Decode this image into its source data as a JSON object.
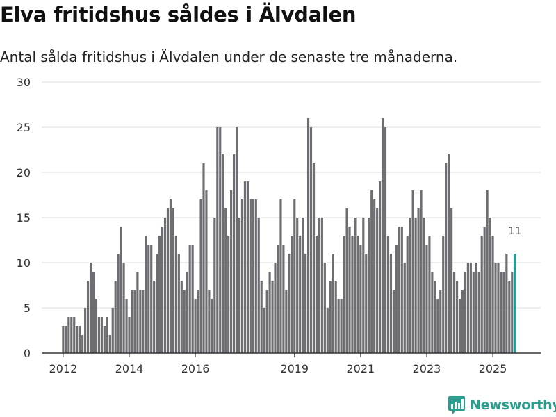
{
  "page": {
    "title": "Elva fritidshus såldes i Älvdalen",
    "subtitle": "Antal sålda fritidshus i Älvdalen under de senaste tre månaderna."
  },
  "brand": {
    "name": "Newsworthy",
    "color": "#2a9d8f"
  },
  "colors": {
    "bar": "#6d6d72",
    "highlight": "#17a2a0",
    "grid": "#dddddd",
    "axis": "#333333",
    "text": "#333333"
  },
  "chart_data": {
    "type": "bar",
    "title": "Elva fritidshus såldes i Älvdalen",
    "subtitle": "Antal sålda fritidshus i Älvdalen under de senaste tre månaderna.",
    "xlabel": "",
    "ylabel": "",
    "ylim": [
      0,
      30
    ],
    "yticks": [
      0,
      5,
      10,
      15,
      20,
      25,
      30
    ],
    "x_range": [
      2011.35,
      2026.45
    ],
    "xticks": [
      {
        "label": "2012",
        "pos": 2012
      },
      {
        "label": "2014",
        "pos": 2014
      },
      {
        "label": "2016",
        "pos": 2016
      },
      {
        "label": "2019",
        "pos": 2019
      },
      {
        "label": "2021",
        "pos": 2021
      },
      {
        "label": "2023",
        "pos": 2023
      },
      {
        "label": "2025",
        "pos": 2025
      }
    ],
    "grid": true,
    "x_start": 2012.0,
    "step_years": 0.0833333,
    "values": [
      3,
      3,
      4,
      4,
      4,
      3,
      3,
      2,
      5,
      8,
      10,
      9,
      6,
      4,
      4,
      3,
      4,
      2,
      5,
      8,
      11,
      14,
      10,
      6,
      4,
      7,
      7,
      9,
      7,
      7,
      13,
      12,
      12,
      8,
      11,
      13,
      14,
      15,
      16,
      17,
      16,
      13,
      11,
      8,
      7,
      9,
      12,
      12,
      6,
      7,
      17,
      21,
      18,
      7,
      6,
      15,
      25,
      25,
      22,
      16,
      13,
      18,
      22,
      25,
      15,
      17,
      19,
      19,
      17,
      17,
      17,
      15,
      8,
      5,
      7,
      9,
      8,
      10,
      12,
      17,
      12,
      7,
      11,
      13,
      17,
      15,
      13,
      15,
      11,
      26,
      25,
      21,
      13,
      15,
      15,
      10,
      5,
      8,
      11,
      8,
      6,
      6,
      13,
      16,
      14,
      13,
      15,
      13,
      12,
      15,
      11,
      15,
      18,
      17,
      16,
      19,
      26,
      25,
      13,
      11,
      7,
      12,
      14,
      14,
      10,
      13,
      15,
      18,
      15,
      16,
      18,
      15,
      12,
      13,
      9,
      8,
      6,
      7,
      13,
      21,
      22,
      16,
      9,
      8,
      6,
      7,
      9,
      10,
      10,
      9,
      10,
      9,
      13,
      14,
      18,
      15,
      13,
      10,
      10,
      9,
      9,
      11,
      8,
      9,
      11
    ],
    "highlight_index": 164,
    "highlight_label": "11"
  }
}
